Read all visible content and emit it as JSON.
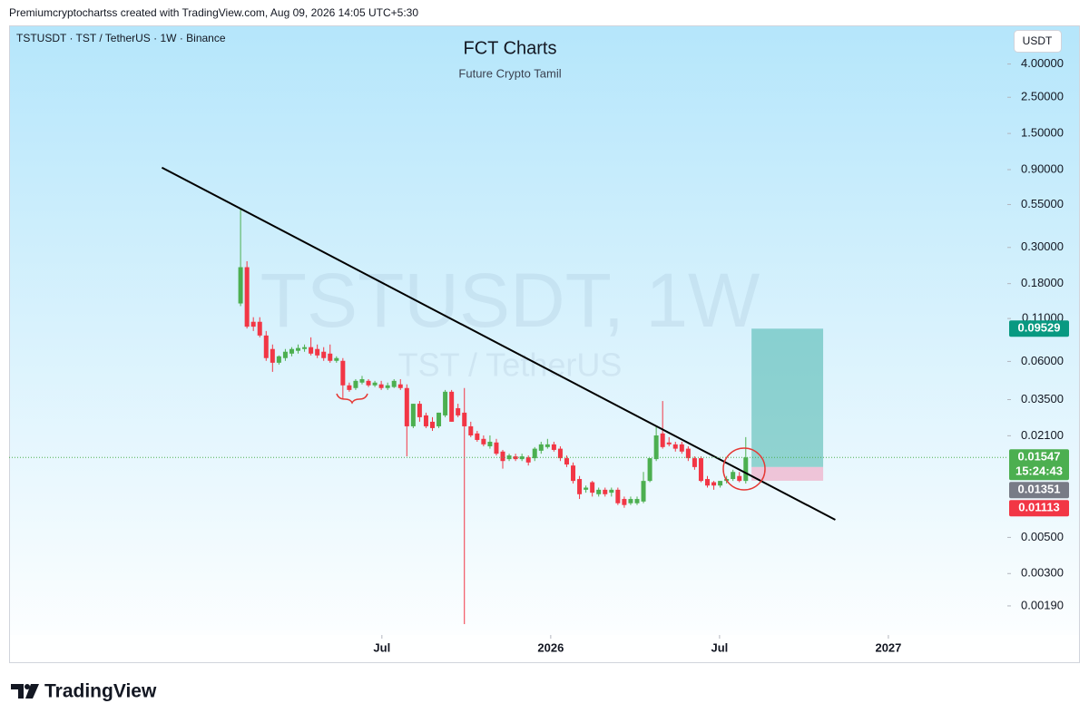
{
  "header": {
    "text": "Premiumcryptochartss created with TradingView.com, Aug 09, 2026 14:05 UTC+5:30"
  },
  "chart_data": {
    "type": "candlestick",
    "symbol_line": "TSTUSDT · TST / TetherUS · 1W · Binance",
    "title": "FCT Charts",
    "subtitle": "Future Crypto Tamil",
    "watermark": "TSTUSDT, 1W",
    "watermark_sub": "TST / TetherUS",
    "currency": "USDT",
    "categories": [
      null,
      null,
      null,
      null,
      null,
      null,
      null,
      null,
      null,
      null,
      null,
      null,
      null,
      null,
      null,
      null,
      null,
      null,
      null,
      null,
      null,
      null,
      null,
      null,
      null,
      null,
      null,
      null,
      null,
      null,
      null,
      null,
      null,
      null,
      null,
      null,
      null,
      null,
      null,
      null,
      null,
      null,
      null,
      null,
      null,
      null,
      null,
      null,
      null,
      null,
      null,
      null,
      null,
      null,
      null,
      null,
      null,
      null,
      null,
      null,
      null,
      null,
      null,
      null,
      null,
      null,
      null,
      null,
      null,
      null,
      null,
      null,
      null,
      null,
      null,
      null,
      null,
      null,
      null,
      null
    ],
    "open": [
      0.136,
      0.227,
      0.105,
      0.105,
      0.0865,
      0.0715,
      0.0589,
      0.0629,
      0.067,
      0.0697,
      0.0715,
      0.0734,
      0.0715,
      0.0688,
      0.067,
      0.0605,
      0.0605,
      0.0428,
      0.0412,
      0.0445,
      0.0456,
      0.0428,
      0.0434,
      0.0412,
      0.0418,
      0.0434,
      0.0412,
      0.024,
      0.033,
      0.028,
      0.0256,
      0.024,
      0.028,
      0.0391,
      0.031,
      0.0291,
      0.024,
      0.0217,
      0.0201,
      0.0181,
      0.0191,
      0.0168,
      0.0151,
      0.0157,
      0.0151,
      0.0155,
      0.0153,
      0.017,
      0.0179,
      0.0186,
      0.0175,
      0.0153,
      0.0138,
      0.0114,
      0.0098,
      0.0109,
      0.0092,
      0.0098,
      0.0094,
      0.0098,
      0.0086,
      0.0081,
      0.0081,
      0.0083,
      0.0111,
      0.0151,
      0.0217,
      0.0191,
      0.0186,
      0.0186,
      0.0175,
      0.0153,
      0.0153,
      0.0114,
      0.0109,
      0.0104,
      0.0111,
      0.0114,
      0.0119,
      0.0111
    ],
    "high": [
      0.521,
      0.247,
      0.112,
      0.112,
      0.0922,
      0.0762,
      0.0653,
      0.0715,
      0.0734,
      0.0762,
      0.0762,
      0.0843,
      0.0762,
      0.0734,
      0.0762,
      0.0645,
      0.0629,
      0.0445,
      0.0467,
      0.0489,
      0.0467,
      0.0456,
      0.0456,
      0.0445,
      0.0467,
      0.0467,
      0.0434,
      0.033,
      0.0343,
      0.0291,
      0.0273,
      0.0291,
      0.0401,
      0.0401,
      0.033,
      0.0412,
      0.0256,
      0.0225,
      0.0211,
      0.0211,
      0.0201,
      0.0172,
      0.0163,
      0.0163,
      0.0163,
      0.0159,
      0.0179,
      0.0193,
      0.0201,
      0.0193,
      0.0181,
      0.0159,
      0.0144,
      0.0119,
      0.0104,
      0.0111,
      0.0101,
      0.0101,
      0.0101,
      0.0101,
      0.0089,
      0.0089,
      0.0089,
      0.0126,
      0.0153,
      0.024,
      0.0343,
      0.0206,
      0.0193,
      0.0193,
      0.0181,
      0.0157,
      0.0157,
      0.0119,
      0.0111,
      0.0111,
      0.0119,
      0.013,
      0.0126,
      0.0206
    ],
    "low": [
      0.131,
      0.0955,
      0.0922,
      0.0843,
      0.0605,
      0.0518,
      0.0574,
      0.0605,
      0.0645,
      0.067,
      0.0688,
      0.0653,
      0.0629,
      0.0605,
      0.0589,
      0.0589,
      0.0352,
      0.0391,
      0.0401,
      0.0434,
      0.0418,
      0.0418,
      0.0401,
      0.0401,
      0.0412,
      0.0401,
      0.0157,
      0.0234,
      0.0256,
      0.0234,
      0.0225,
      0.0234,
      0.0273,
      0.0256,
      0.0273,
      0.00147,
      0.0206,
      0.0193,
      0.0181,
      0.0175,
      0.0159,
      0.0132,
      0.0147,
      0.0147,
      0.0147,
      0.0138,
      0.0147,
      0.0163,
      0.0175,
      0.0168,
      0.0147,
      0.0135,
      0.0107,
      0.0086,
      0.0094,
      0.0089,
      0.0089,
      0.0089,
      0.0089,
      0.0079,
      0.0076,
      0.0079,
      0.0079,
      0.0081,
      0.0109,
      0.0147,
      0.0175,
      0.0181,
      0.0168,
      0.0163,
      0.0147,
      0.013,
      0.0109,
      0.0101,
      0.0098,
      0.0101,
      0.0107,
      0.0111,
      0.0109,
      0.0107
    ],
    "close": [
      0.227,
      0.098,
      0.098,
      0.0865,
      0.0629,
      0.0589,
      0.0645,
      0.0688,
      0.0715,
      0.0725,
      0.0734,
      0.067,
      0.0653,
      0.0629,
      0.0605,
      0.0629,
      0.0428,
      0.0401,
      0.0456,
      0.0467,
      0.0428,
      0.0445,
      0.0412,
      0.0428,
      0.0456,
      0.0412,
      0.024,
      0.033,
      0.0273,
      0.024,
      0.0234,
      0.0291,
      0.0391,
      0.0256,
      0.028,
      0.024,
      0.0211,
      0.0198,
      0.0186,
      0.0193,
      0.0163,
      0.0147,
      0.0159,
      0.0151,
      0.0157,
      0.0144,
      0.0175,
      0.0186,
      0.0186,
      0.0172,
      0.0153,
      0.014,
      0.0111,
      0.0092,
      0.0101,
      0.0094,
      0.0098,
      0.0092,
      0.0098,
      0.0081,
      0.0079,
      0.0086,
      0.0086,
      0.0111,
      0.0153,
      0.0211,
      0.0179,
      0.0186,
      0.0175,
      0.0168,
      0.0153,
      0.0135,
      0.0111,
      0.0104,
      0.0104,
      0.0111,
      0.0114,
      0.0126,
      0.0111,
      0.01547
    ],
    "up_color": "#4caf50",
    "down_color": "#f23645",
    "log_scale": true,
    "grid": false,
    "ylim": [
      0.00126,
      6.9
    ],
    "yticks": [
      {
        "value": 4,
        "label": "4.00000"
      },
      {
        "value": 2.5,
        "label": "2.50000"
      },
      {
        "value": 1.5,
        "label": "1.50000"
      },
      {
        "value": 0.9,
        "label": "0.90000"
      },
      {
        "value": 0.55,
        "label": "0.55000"
      },
      {
        "value": 0.3,
        "label": "0.30000"
      },
      {
        "value": 0.18,
        "label": "0.18000"
      },
      {
        "value": 0.11,
        "label": "0.11000"
      },
      {
        "value": 0.06,
        "label": "0.06000"
      },
      {
        "value": 0.035,
        "label": "0.03500"
      },
      {
        "value": 0.021,
        "label": "0.02100"
      },
      {
        "value": 0.005,
        "label": "0.00500"
      },
      {
        "value": 0.003,
        "label": "0.00300"
      },
      {
        "value": 0.0019,
        "label": "0.00190"
      }
    ],
    "xlim": [
      -36.2,
      119.9
    ],
    "xticks": [
      {
        "value": 22.1,
        "label": "Jul"
      },
      {
        "value": 48.5,
        "label": "2026"
      },
      {
        "value": 74.9,
        "label": "Jul"
      },
      {
        "value": 101.3,
        "label": "2027"
      }
    ],
    "trendline": {
      "x": [
        -12.3,
        93.0
      ],
      "y": [
        0.927,
        0.00641
      ]
    },
    "position": {
      "x": [
        79.9,
        91.1
      ],
      "target": 0.09529,
      "entry": 0.01351,
      "stop": 0.01113
    },
    "last_price": {
      "value": 0.01547,
      "countdown": "15:24:43"
    }
  },
  "footer": {
    "brand": "TradingView"
  }
}
